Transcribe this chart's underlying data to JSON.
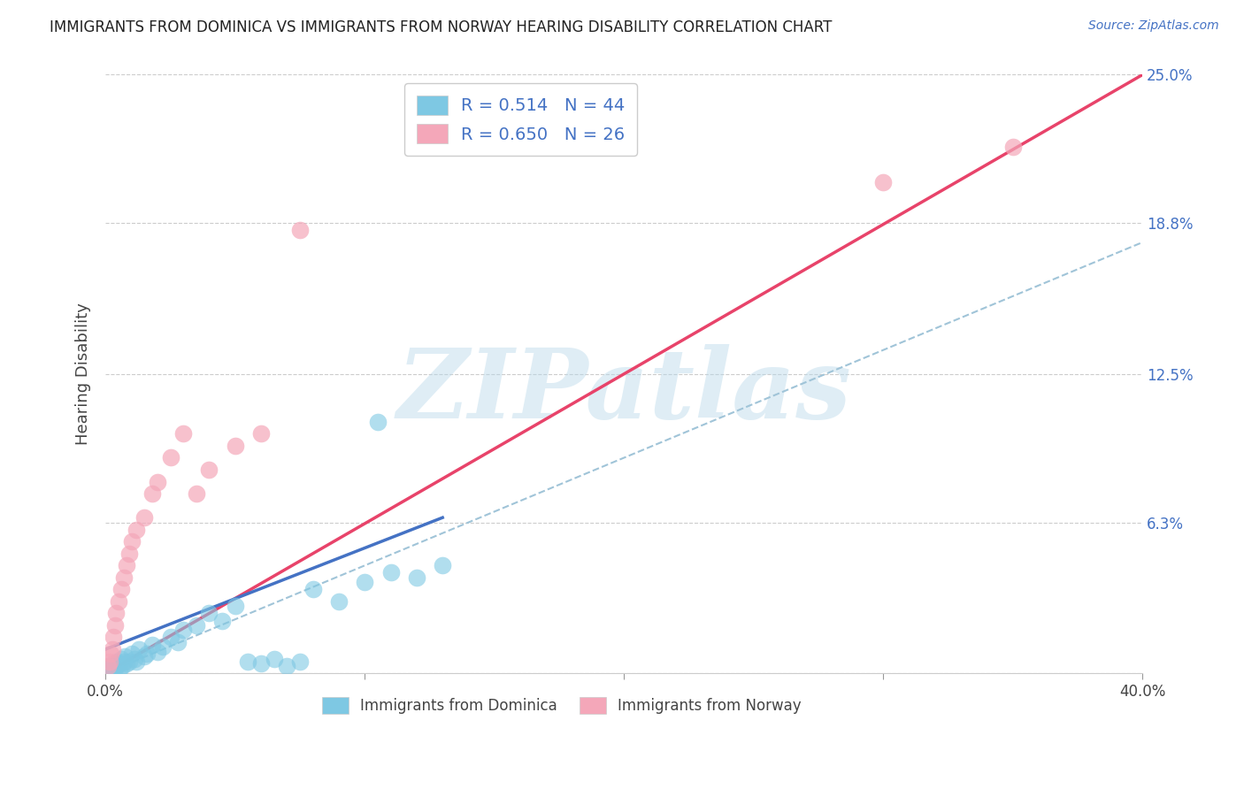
{
  "title": "IMMIGRANTS FROM DOMINICA VS IMMIGRANTS FROM NORWAY HEARING DISABILITY CORRELATION CHART",
  "source": "Source: ZipAtlas.com",
  "xlim": [
    0.0,
    40.0
  ],
  "ylim": [
    0.0,
    25.0
  ],
  "x_tick_positions": [
    0.0,
    10.0,
    20.0,
    30.0,
    40.0
  ],
  "x_tick_labels_show": [
    "0.0%",
    "",
    "",
    "",
    "40.0%"
  ],
  "y_tick_positions": [
    0.0,
    6.3,
    12.5,
    18.8,
    25.0
  ],
  "y_tick_labels_right": [
    "",
    "6.3%",
    "12.5%",
    "18.8%",
    "25.0%"
  ],
  "dominica_color": "#7ec8e3",
  "norway_color": "#f4a7b9",
  "norway_line_color": "#e8436a",
  "dominica_line_color": "#4472c4",
  "dominica_dash_color": "#a0c4d8",
  "R_dominica": 0.514,
  "N_dominica": 44,
  "R_norway": 0.65,
  "N_norway": 26,
  "legend_label_dominica": "Immigrants from Dominica",
  "legend_label_norway": "Immigrants from Norway",
  "watermark": "ZIPatlas",
  "dominica_x": [
    0.1,
    0.15,
    0.2,
    0.25,
    0.3,
    0.35,
    0.4,
    0.45,
    0.5,
    0.55,
    0.6,
    0.65,
    0.7,
    0.75,
    0.8,
    0.9,
    1.0,
    1.1,
    1.2,
    1.3,
    1.5,
    1.6,
    1.8,
    2.0,
    2.2,
    2.5,
    2.8,
    3.0,
    3.5,
    4.0,
    4.5,
    5.0,
    5.5,
    6.0,
    6.5,
    7.0,
    7.5,
    8.0,
    9.0,
    10.0,
    10.5,
    11.0,
    12.0,
    13.0
  ],
  "dominica_y": [
    0.2,
    0.1,
    0.3,
    0.15,
    0.4,
    0.2,
    0.3,
    0.5,
    0.4,
    0.2,
    0.6,
    0.3,
    0.5,
    0.7,
    0.4,
    0.5,
    0.8,
    0.6,
    0.5,
    1.0,
    0.7,
    0.8,
    1.2,
    0.9,
    1.1,
    1.5,
    1.3,
    1.8,
    2.0,
    2.5,
    2.2,
    2.8,
    0.5,
    0.4,
    0.6,
    0.3,
    0.5,
    3.5,
    3.0,
    3.8,
    10.5,
    4.2,
    4.0,
    4.5
  ],
  "norway_x": [
    0.1,
    0.15,
    0.2,
    0.25,
    0.3,
    0.35,
    0.4,
    0.5,
    0.6,
    0.7,
    0.8,
    0.9,
    1.0,
    1.2,
    1.5,
    1.8,
    2.0,
    2.5,
    3.0,
    3.5,
    4.0,
    5.0,
    6.0,
    7.5,
    30.0,
    35.0
  ],
  "norway_y": [
    0.3,
    0.5,
    0.8,
    1.0,
    1.5,
    2.0,
    2.5,
    3.0,
    3.5,
    4.0,
    4.5,
    5.0,
    5.5,
    6.0,
    6.5,
    7.5,
    8.0,
    9.0,
    10.0,
    7.5,
    8.5,
    9.5,
    10.0,
    18.5,
    20.5,
    22.0
  ]
}
